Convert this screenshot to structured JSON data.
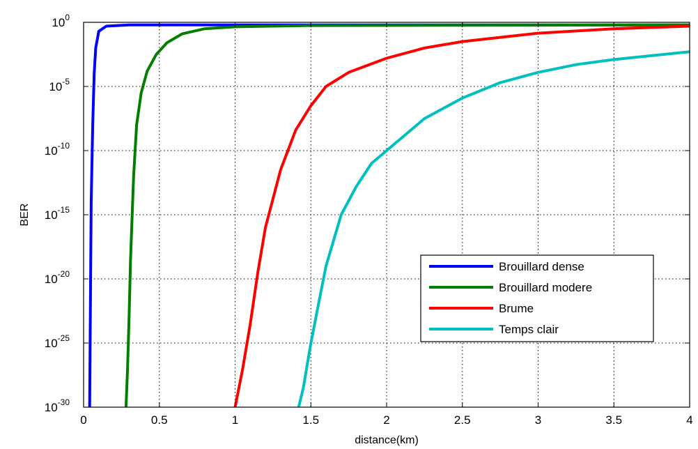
{
  "chart_data": {
    "type": "line",
    "title": "",
    "xlabel": "distance(km)",
    "ylabel": "BER",
    "xlim": [
      0,
      4
    ],
    "ylim_exponent": [
      -30,
      0
    ],
    "yscale": "log",
    "grid": true,
    "legend_position": "bottom-right",
    "x_ticks": [
      "0",
      "0.5",
      "1",
      "1.5",
      "2",
      "2.5",
      "3",
      "3.5",
      "4"
    ],
    "y_ticks": [
      {
        "base": "10",
        "exp": "-30"
      },
      {
        "base": "10",
        "exp": "-25"
      },
      {
        "base": "10",
        "exp": "-20"
      },
      {
        "base": "10",
        "exp": "-15"
      },
      {
        "base": "10",
        "exp": "-10"
      },
      {
        "base": "10",
        "exp": "-5"
      },
      {
        "base": "10",
        "exp": "0"
      }
    ],
    "series": [
      {
        "name": "Brouillard dense",
        "color": "#0000ff",
        "x": [
          0.04,
          0.045,
          0.05,
          0.06,
          0.07,
          0.08,
          0.1,
          0.15,
          0.3,
          1.0,
          4.0
        ],
        "log10_y": [
          -30,
          -22,
          -14,
          -8,
          -4,
          -2,
          -0.7,
          -0.3,
          -0.2,
          -0.2,
          -0.2
        ]
      },
      {
        "name": "Brouillard modere",
        "color": "#007f00",
        "x": [
          0.28,
          0.29,
          0.3,
          0.31,
          0.33,
          0.35,
          0.38,
          0.42,
          0.48,
          0.55,
          0.65,
          0.8,
          1.0,
          1.5,
          4.0
        ],
        "log10_y": [
          -30,
          -27,
          -23,
          -18.5,
          -12,
          -8,
          -5.5,
          -3.8,
          -2.5,
          -1.6,
          -0.9,
          -0.5,
          -0.35,
          -0.25,
          -0.2
        ]
      },
      {
        "name": "Brume",
        "color": "#ff0000",
        "x": [
          1.0,
          1.05,
          1.1,
          1.15,
          1.2,
          1.3,
          1.4,
          1.5,
          1.6,
          1.75,
          2.0,
          2.25,
          2.5,
          3.0,
          3.5,
          4.0
        ],
        "log10_y": [
          -30,
          -27,
          -23.5,
          -19.5,
          -16,
          -11.5,
          -8.4,
          -6.5,
          -5.0,
          -3.9,
          -2.8,
          -2.0,
          -1.5,
          -0.85,
          -0.5,
          -0.3
        ]
      },
      {
        "name": "Temps clair",
        "color": "#00bfbf",
        "x": [
          1.42,
          1.45,
          1.5,
          1.55,
          1.6,
          1.7,
          1.8,
          1.9,
          2.0,
          2.25,
          2.5,
          2.75,
          3.0,
          3.25,
          3.5,
          3.75,
          4.0
        ],
        "log10_y": [
          -30,
          -28.5,
          -25,
          -22,
          -19,
          -15,
          -12.8,
          -11,
          -10,
          -7.5,
          -5.9,
          -4.7,
          -3.9,
          -3.3,
          -2.9,
          -2.6,
          -2.3
        ]
      }
    ]
  }
}
